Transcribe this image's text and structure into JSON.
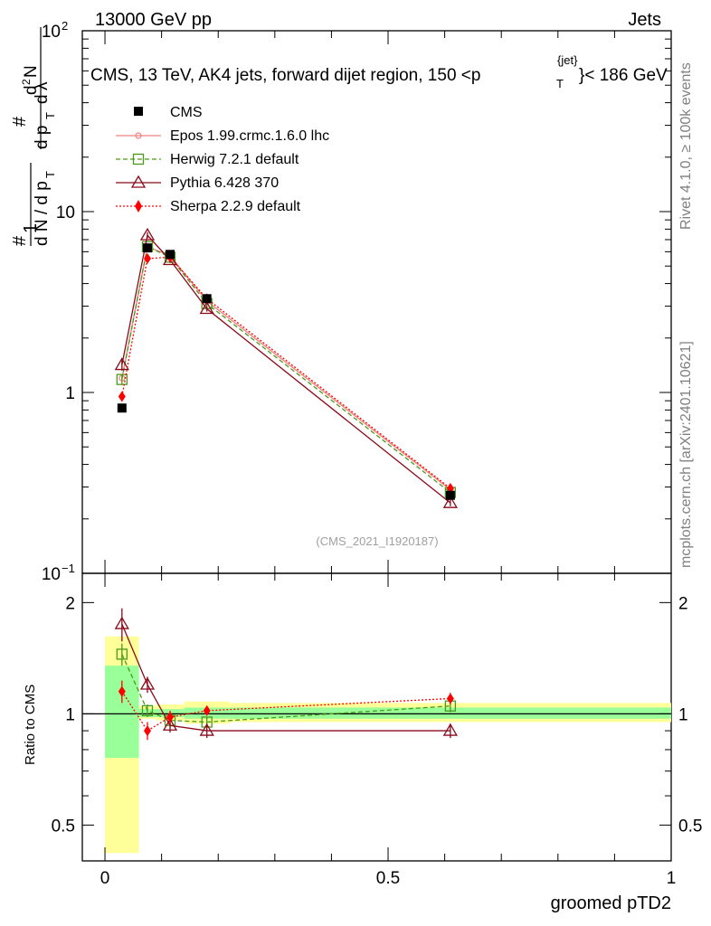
{
  "header": {
    "left": "13000 GeV pp",
    "right": "Jets"
  },
  "side_labels": {
    "rivet": "Rivet 4.1.0, ≥ 100k events",
    "mcplots": "mcplots.cern.ch [arXiv:2401.10621]"
  },
  "analysis_id": "(CMS_2021_I1920187)",
  "colors": {
    "cms": "#000000",
    "epos": "#f08080",
    "herwig": "#4a9a1a",
    "pythia": "#8b0a1a",
    "sherpa": "#ff0000",
    "band_inner": "#99ff99",
    "band_outer": "#ffff99"
  },
  "chart_data": [
    {
      "type": "line",
      "panel": "main",
      "title_parts": {
        "main": "CMS, 13 TeV, AK4 jets, forward dijet region, 150 <p",
        "sub": "T",
        "sup": "{jet}",
        "tail": "}< 186 GeV"
      },
      "ylabel": "1/N dN/dpT d²N/dpT dλ",
      "yscale": "log",
      "ylim": [
        0.1,
        100
      ],
      "xlim": [
        -0.04,
        1.0
      ],
      "yticks": [
        {
          "value": 0.1,
          "base": "10",
          "exp": "−1"
        },
        {
          "value": 1,
          "base": "1",
          "exp": ""
        },
        {
          "value": 10,
          "base": "10",
          "exp": ""
        },
        {
          "value": 100,
          "base": "10",
          "exp": "2"
        }
      ],
      "series": [
        {
          "name": "CMS",
          "key": "cms",
          "x": [
            0.03,
            0.075,
            0.115,
            0.18,
            0.61
          ],
          "y": [
            0.82,
            6.3,
            5.8,
            3.3,
            0.27
          ],
          "yerr": [
            0.04,
            0.2,
            0.2,
            0.1,
            0.01
          ]
        },
        {
          "name": "Epos 1.99.crmc.1.6.0 lhc",
          "key": "epos",
          "x": [
            0.03,
            0.075,
            0.115,
            0.18,
            0.61
          ],
          "y": [
            1.2,
            6.4,
            5.7,
            3.2,
            0.29
          ],
          "yerr": [
            0,
            0,
            0,
            0,
            0
          ]
        },
        {
          "name": "Herwig 7.2.1 default",
          "key": "herwig",
          "x": [
            0.03,
            0.075,
            0.115,
            0.18,
            0.61
          ],
          "y": [
            1.18,
            6.4,
            5.6,
            3.1,
            0.28
          ],
          "yerr": [
            0.08,
            0.2,
            0.2,
            0.1,
            0.01
          ]
        },
        {
          "name": "Pythia 6.428 370",
          "key": "pythia",
          "x": [
            0.03,
            0.075,
            0.115,
            0.18,
            0.61
          ],
          "y": [
            1.42,
            7.4,
            5.4,
            2.9,
            0.245
          ],
          "yerr": [
            0.1,
            0.3,
            0.2,
            0.1,
            0.01
          ]
        },
        {
          "name": "Sherpa 2.2.9 default",
          "key": "sherpa",
          "x": [
            0.03,
            0.075,
            0.115,
            0.18,
            0.61
          ],
          "y": [
            0.95,
            5.5,
            5.6,
            3.3,
            0.295
          ],
          "yerr": [
            0.05,
            0.2,
            0.2,
            0.1,
            0.01
          ]
        }
      ]
    },
    {
      "type": "line",
      "panel": "ratio",
      "ylabel": "Ratio to CMS",
      "xlabel": "groomed pTD2",
      "yscale": "log",
      "ylim": [
        0.4,
        2.4
      ],
      "xlim": [
        -0.04,
        1.0
      ],
      "yticks": [
        0.5,
        1,
        2
      ],
      "xticks": [
        0,
        0.5,
        1
      ],
      "series": [
        {
          "name": "Herwig 7.2.1 default",
          "key": "herwig",
          "x": [
            0.03,
            0.075,
            0.115,
            0.18,
            0.61
          ],
          "y": [
            1.45,
            1.02,
            0.96,
            0.95,
            1.05
          ],
          "yerr": [
            0.1,
            0.04,
            0.04,
            0.03,
            0.04
          ]
        },
        {
          "name": "Pythia 6.428 370",
          "key": "pythia",
          "x": [
            0.03,
            0.075,
            0.115,
            0.18,
            0.61
          ],
          "y": [
            1.75,
            1.2,
            0.93,
            0.9,
            0.9
          ],
          "yerr": [
            0.18,
            0.06,
            0.04,
            0.04,
            0.04
          ]
        },
        {
          "name": "Sherpa 2.2.9 default",
          "key": "sherpa",
          "x": [
            0.03,
            0.075,
            0.115,
            0.18,
            0.61
          ],
          "y": [
            1.15,
            0.9,
            0.98,
            1.02,
            1.1
          ],
          "yerr": [
            0.08,
            0.05,
            0.04,
            0.03,
            0.04
          ]
        }
      ],
      "uncertainty_bands": [
        {
          "x0": 0.0,
          "x1": 0.06,
          "outer": [
            0.42,
            1.62
          ],
          "inner": [
            0.76,
            1.35
          ]
        },
        {
          "x0": 0.06,
          "x1": 0.09,
          "outer": [
            0.97,
            1.05
          ],
          "inner": [
            0.98,
            1.03
          ]
        },
        {
          "x0": 0.09,
          "x1": 0.14,
          "outer": [
            0.96,
            1.06
          ],
          "inner": [
            0.98,
            1.03
          ]
        },
        {
          "x0": 0.14,
          "x1": 0.22,
          "outer": [
            0.94,
            1.08
          ],
          "inner": [
            0.97,
            1.04
          ]
        },
        {
          "x0": 0.22,
          "x1": 1.0,
          "outer": [
            0.95,
            1.07
          ],
          "inner": [
            0.97,
            1.04
          ]
        }
      ]
    }
  ]
}
